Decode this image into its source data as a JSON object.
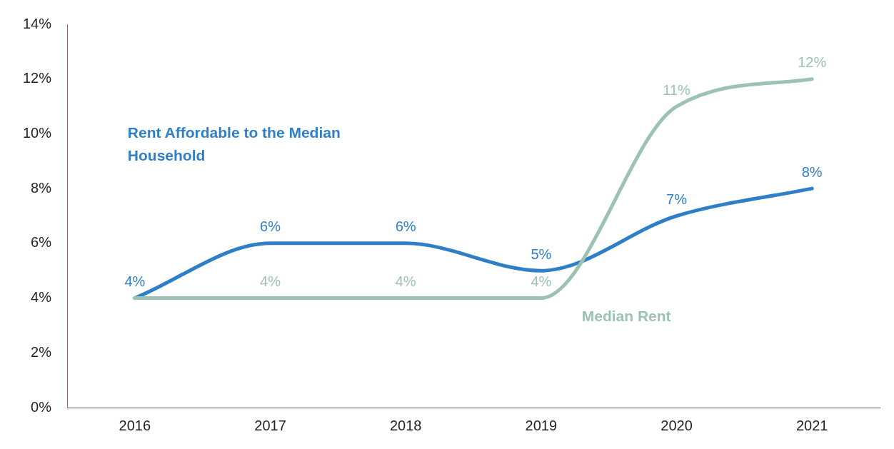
{
  "chart_data": {
    "type": "line",
    "categories": [
      "2016",
      "2017",
      "2018",
      "2019",
      "2020",
      "2021"
    ],
    "series": [
      {
        "name": "Rent Affordable to the Median Household",
        "color": "#2f7fc8",
        "values": [
          4,
          6,
          6,
          5,
          7,
          8
        ],
        "value_labels": [
          "4%",
          "6%",
          "6%",
          "5%",
          "7%",
          "8%"
        ]
      },
      {
        "name": "Median Rent",
        "color": "#9cc2b2",
        "values": [
          4,
          4,
          4,
          4,
          11,
          12
        ],
        "value_labels": [
          null,
          "4%",
          "4%",
          "4%",
          "11%",
          "12%"
        ]
      }
    ],
    "ylim": [
      0,
      14
    ],
    "yticks": [
      {
        "value": 0,
        "label": "0%"
      },
      {
        "value": 2,
        "label": "2%"
      },
      {
        "value": 4,
        "label": "4%"
      },
      {
        "value": 6,
        "label": "6%"
      },
      {
        "value": 8,
        "label": "8%"
      },
      {
        "value": 10,
        "label": "10%"
      },
      {
        "value": 12,
        "label": "12%"
      },
      {
        "value": 14,
        "label": "14%"
      }
    ],
    "grid": false,
    "legend": false,
    "marker": "none",
    "line_style": "solid"
  }
}
